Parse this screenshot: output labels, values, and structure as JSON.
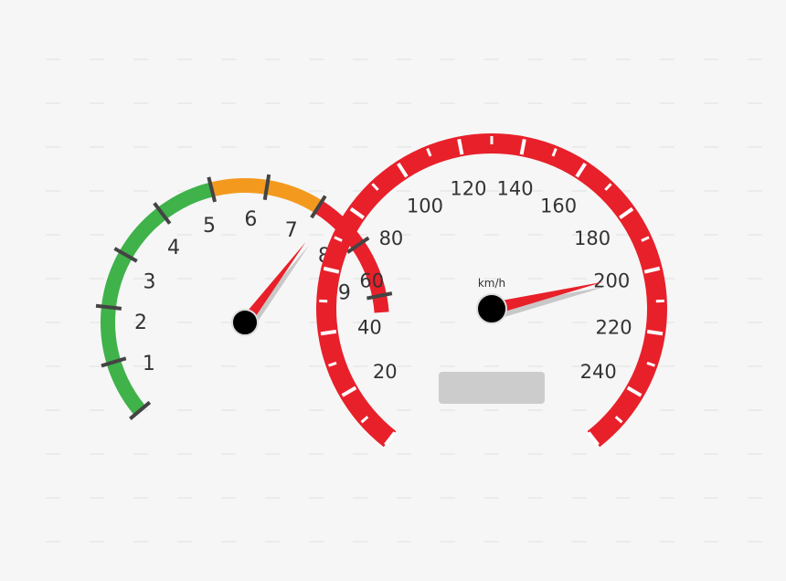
{
  "tachometer": {
    "labels": [
      "1",
      "2",
      "3",
      "4",
      "5",
      "6",
      "7",
      "8",
      "9"
    ],
    "zones": [
      {
        "name": "normal",
        "color": "#3fb24a"
      },
      {
        "name": "caution",
        "color": "#f39a1e"
      },
      {
        "name": "redline",
        "color": "#e8202a"
      }
    ],
    "needle_value": 7.2,
    "needle_color": "#e8202a",
    "hub_color": "#000000"
  },
  "speedometer": {
    "unit": "km/h",
    "labels": [
      "20",
      "40",
      "60",
      "80",
      "100",
      "120",
      "140",
      "160",
      "180",
      "200",
      "220",
      "240"
    ],
    "ring_color": "#e8202a",
    "needle_value": 200,
    "needle_color": "#e8202a",
    "hub_color": "#000000",
    "odometer_display": ""
  },
  "colors": {
    "background": "#f6f6f6",
    "tick": "#444444",
    "label": "#333333",
    "display": "#cccccc"
  },
  "icons": [
    "tachometer-needle",
    "speedometer-needle"
  ]
}
